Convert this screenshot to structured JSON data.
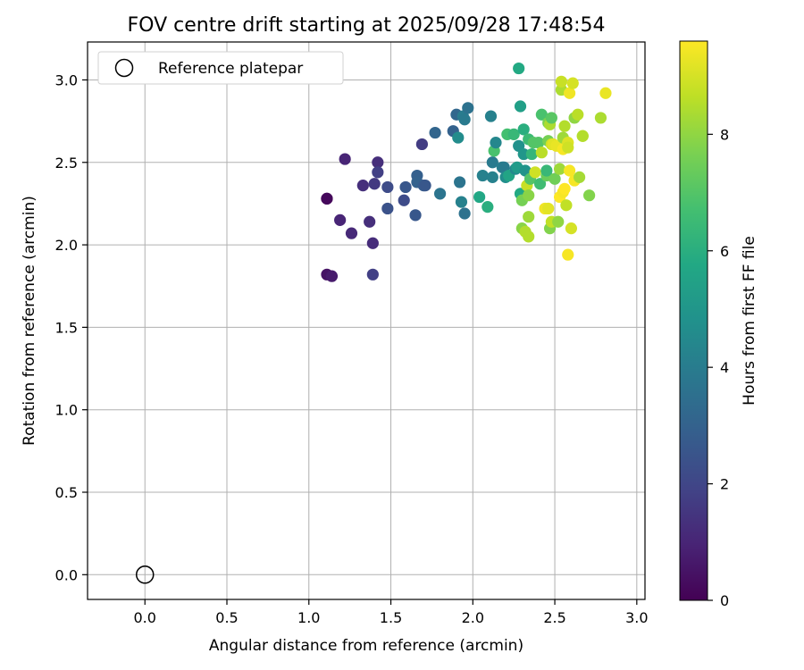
{
  "chart_data": {
    "type": "scatter",
    "title": "FOV centre drift starting at 2025/09/28 17:48:54",
    "xlabel": "Angular distance from reference (arcmin)",
    "ylabel": "Rotation from reference (arcmin)",
    "xlim": [
      -0.35,
      3.05
    ],
    "ylim": [
      -0.15,
      3.23
    ],
    "x_ticks": [
      0.0,
      0.5,
      1.0,
      1.5,
      2.0,
      2.5,
      3.0
    ],
    "x_tick_labels": [
      "0.0",
      "0.5",
      "1.0",
      "1.5",
      "2.0",
      "2.5",
      "3.0"
    ],
    "y_ticks": [
      0.0,
      0.5,
      1.0,
      1.5,
      2.0,
      2.5,
      3.0
    ],
    "y_tick_labels": [
      "0.0",
      "0.5",
      "1.0",
      "1.5",
      "2.0",
      "2.5",
      "3.0"
    ],
    "grid": true,
    "legend": {
      "position": "top-left",
      "entries": [
        "Reference platepar"
      ]
    },
    "reference_point": {
      "name": "Reference platepar",
      "x": 0.0,
      "y": 0.0
    },
    "colorbar": {
      "label": "Hours from first FF file",
      "min": 0,
      "max": 9.6,
      "ticks": [
        0,
        2,
        4,
        6,
        8
      ],
      "tick_labels": [
        "0",
        "2",
        "4",
        "6",
        "8"
      ],
      "colormap": "viridis"
    },
    "points": [
      {
        "x": 1.11,
        "y": 2.28,
        "c": 0.1
      },
      {
        "x": 1.11,
        "y": 2.28,
        "c": 0.2
      },
      {
        "x": 1.11,
        "y": 1.82,
        "c": 0.5
      },
      {
        "x": 1.14,
        "y": 1.81,
        "c": 0.7
      },
      {
        "x": 1.19,
        "y": 2.15,
        "c": 1.0
      },
      {
        "x": 1.22,
        "y": 2.52,
        "c": 1.0
      },
      {
        "x": 1.26,
        "y": 2.07,
        "c": 1.1
      },
      {
        "x": 1.33,
        "y": 2.36,
        "c": 1.3
      },
      {
        "x": 1.37,
        "y": 2.14,
        "c": 1.3
      },
      {
        "x": 1.39,
        "y": 2.01,
        "c": 1.2
      },
      {
        "x": 1.39,
        "y": 1.82,
        "c": 1.8
      },
      {
        "x": 1.4,
        "y": 2.37,
        "c": 1.6
      },
      {
        "x": 1.42,
        "y": 2.5,
        "c": 1.3
      },
      {
        "x": 1.42,
        "y": 2.44,
        "c": 1.8
      },
      {
        "x": 1.48,
        "y": 2.35,
        "c": 2.2
      },
      {
        "x": 1.48,
        "y": 2.22,
        "c": 2.4
      },
      {
        "x": 1.58,
        "y": 2.27,
        "c": 2.2
      },
      {
        "x": 1.59,
        "y": 2.35,
        "c": 2.6
      },
      {
        "x": 1.65,
        "y": 2.18,
        "c": 2.6
      },
      {
        "x": 1.66,
        "y": 2.42,
        "c": 2.9
      },
      {
        "x": 1.66,
        "y": 2.38,
        "c": 3.0
      },
      {
        "x": 1.69,
        "y": 2.61,
        "c": 1.7
      },
      {
        "x": 1.7,
        "y": 2.36,
        "c": 2.8
      },
      {
        "x": 1.71,
        "y": 2.36,
        "c": 2.6
      },
      {
        "x": 1.77,
        "y": 2.68,
        "c": 3.1
      },
      {
        "x": 1.8,
        "y": 2.31,
        "c": 3.7
      },
      {
        "x": 1.88,
        "y": 2.69,
        "c": 3.0
      },
      {
        "x": 1.9,
        "y": 2.79,
        "c": 3.2
      },
      {
        "x": 1.91,
        "y": 2.65,
        "c": 4.6
      },
      {
        "x": 1.92,
        "y": 2.38,
        "c": 3.7
      },
      {
        "x": 1.93,
        "y": 2.26,
        "c": 4.2
      },
      {
        "x": 1.94,
        "y": 2.78,
        "c": 4.0
      },
      {
        "x": 1.95,
        "y": 2.76,
        "c": 3.9
      },
      {
        "x": 1.95,
        "y": 2.19,
        "c": 3.6
      },
      {
        "x": 1.97,
        "y": 2.83,
        "c": 3.6
      },
      {
        "x": 2.04,
        "y": 2.29,
        "c": 5.7
      },
      {
        "x": 2.06,
        "y": 2.42,
        "c": 4.2
      },
      {
        "x": 2.09,
        "y": 2.23,
        "c": 6.0
      },
      {
        "x": 2.11,
        "y": 2.78,
        "c": 4.2
      },
      {
        "x": 2.12,
        "y": 2.5,
        "c": 3.9
      },
      {
        "x": 2.12,
        "y": 2.41,
        "c": 4.2
      },
      {
        "x": 2.13,
        "y": 2.57,
        "c": 6.8
      },
      {
        "x": 2.14,
        "y": 2.62,
        "c": 4.4
      },
      {
        "x": 2.18,
        "y": 2.47,
        "c": 4.1
      },
      {
        "x": 2.19,
        "y": 2.47,
        "c": 3.9
      },
      {
        "x": 2.2,
        "y": 2.41,
        "c": 4.7
      },
      {
        "x": 2.21,
        "y": 2.67,
        "c": 6.7
      },
      {
        "x": 2.22,
        "y": 2.42,
        "c": 5.6
      },
      {
        "x": 2.25,
        "y": 2.67,
        "c": 6.4
      },
      {
        "x": 2.26,
        "y": 2.46,
        "c": 4.5
      },
      {
        "x": 2.27,
        "y": 2.47,
        "c": 5.2
      },
      {
        "x": 2.28,
        "y": 3.07,
        "c": 5.8
      },
      {
        "x": 2.28,
        "y": 2.6,
        "c": 4.8
      },
      {
        "x": 2.29,
        "y": 2.84,
        "c": 5.4
      },
      {
        "x": 2.29,
        "y": 2.31,
        "c": 5.8
      },
      {
        "x": 2.3,
        "y": 2.27,
        "c": 7.6
      },
      {
        "x": 2.3,
        "y": 2.1,
        "c": 7.9
      },
      {
        "x": 2.31,
        "y": 2.55,
        "c": 5.0
      },
      {
        "x": 2.31,
        "y": 2.7,
        "c": 6.0
      },
      {
        "x": 2.32,
        "y": 2.08,
        "c": 8.5
      },
      {
        "x": 2.32,
        "y": 2.45,
        "c": 4.9
      },
      {
        "x": 2.33,
        "y": 2.36,
        "c": 8.8
      },
      {
        "x": 2.34,
        "y": 2.3,
        "c": 7.9
      },
      {
        "x": 2.34,
        "y": 2.17,
        "c": 8.2
      },
      {
        "x": 2.34,
        "y": 2.05,
        "c": 8.5
      },
      {
        "x": 2.34,
        "y": 2.64,
        "c": 6.5
      },
      {
        "x": 2.35,
        "y": 2.4,
        "c": 7.0
      },
      {
        "x": 2.36,
        "y": 2.55,
        "c": 6.3
      },
      {
        "x": 2.37,
        "y": 2.62,
        "c": 7.0
      },
      {
        "x": 2.38,
        "y": 2.44,
        "c": 8.9
      },
      {
        "x": 2.4,
        "y": 2.62,
        "c": 7.0
      },
      {
        "x": 2.41,
        "y": 2.37,
        "c": 6.6
      },
      {
        "x": 2.42,
        "y": 2.56,
        "c": 8.6
      },
      {
        "x": 2.42,
        "y": 2.79,
        "c": 6.8
      },
      {
        "x": 2.44,
        "y": 2.22,
        "c": 9.4
      },
      {
        "x": 2.45,
        "y": 2.42,
        "c": 7.4
      },
      {
        "x": 2.45,
        "y": 2.45,
        "c": 6.4
      },
      {
        "x": 2.46,
        "y": 2.63,
        "c": 7.6
      },
      {
        "x": 2.46,
        "y": 2.22,
        "c": 9.2
      },
      {
        "x": 2.46,
        "y": 2.74,
        "c": 7.7
      },
      {
        "x": 2.47,
        "y": 2.73,
        "c": 8.4
      },
      {
        "x": 2.47,
        "y": 2.1,
        "c": 7.8
      },
      {
        "x": 2.48,
        "y": 2.14,
        "c": 8.7
      },
      {
        "x": 2.48,
        "y": 2.61,
        "c": 8.9
      },
      {
        "x": 2.48,
        "y": 2.77,
        "c": 7.1
      },
      {
        "x": 2.49,
        "y": 2.61,
        "c": 9.2
      },
      {
        "x": 2.5,
        "y": 2.4,
        "c": 7.5
      },
      {
        "x": 2.51,
        "y": 2.6,
        "c": 9.3
      },
      {
        "x": 2.52,
        "y": 2.14,
        "c": 8.0
      },
      {
        "x": 2.53,
        "y": 2.29,
        "c": 9.6
      },
      {
        "x": 2.53,
        "y": 2.46,
        "c": 8.2
      },
      {
        "x": 2.54,
        "y": 2.94,
        "c": 8.4
      },
      {
        "x": 2.54,
        "y": 2.99,
        "c": 8.8
      },
      {
        "x": 2.55,
        "y": 2.65,
        "c": 8.2
      },
      {
        "x": 2.55,
        "y": 2.58,
        "c": 9.5
      },
      {
        "x": 2.55,
        "y": 2.32,
        "c": 9.5
      },
      {
        "x": 2.56,
        "y": 2.72,
        "c": 8.5
      },
      {
        "x": 2.56,
        "y": 2.34,
        "c": 9.6
      },
      {
        "x": 2.57,
        "y": 2.24,
        "c": 8.7
      },
      {
        "x": 2.58,
        "y": 2.62,
        "c": 9.1
      },
      {
        "x": 2.58,
        "y": 2.59,
        "c": 8.9
      },
      {
        "x": 2.58,
        "y": 1.94,
        "c": 9.5
      },
      {
        "x": 2.59,
        "y": 2.45,
        "c": 9.5
      },
      {
        "x": 2.59,
        "y": 2.92,
        "c": 9.4
      },
      {
        "x": 2.6,
        "y": 2.1,
        "c": 9.0
      },
      {
        "x": 2.61,
        "y": 2.98,
        "c": 9.0
      },
      {
        "x": 2.62,
        "y": 2.39,
        "c": 9.5
      },
      {
        "x": 2.62,
        "y": 2.77,
        "c": 8.0
      },
      {
        "x": 2.64,
        "y": 2.79,
        "c": 8.6
      },
      {
        "x": 2.65,
        "y": 2.41,
        "c": 8.3
      },
      {
        "x": 2.67,
        "y": 2.66,
        "c": 8.7
      },
      {
        "x": 2.67,
        "y": 2.66,
        "c": 8.5
      },
      {
        "x": 2.71,
        "y": 2.3,
        "c": 7.8
      },
      {
        "x": 2.78,
        "y": 2.77,
        "c": 8.4
      },
      {
        "x": 2.81,
        "y": 2.92,
        "c": 9.3
      }
    ]
  }
}
